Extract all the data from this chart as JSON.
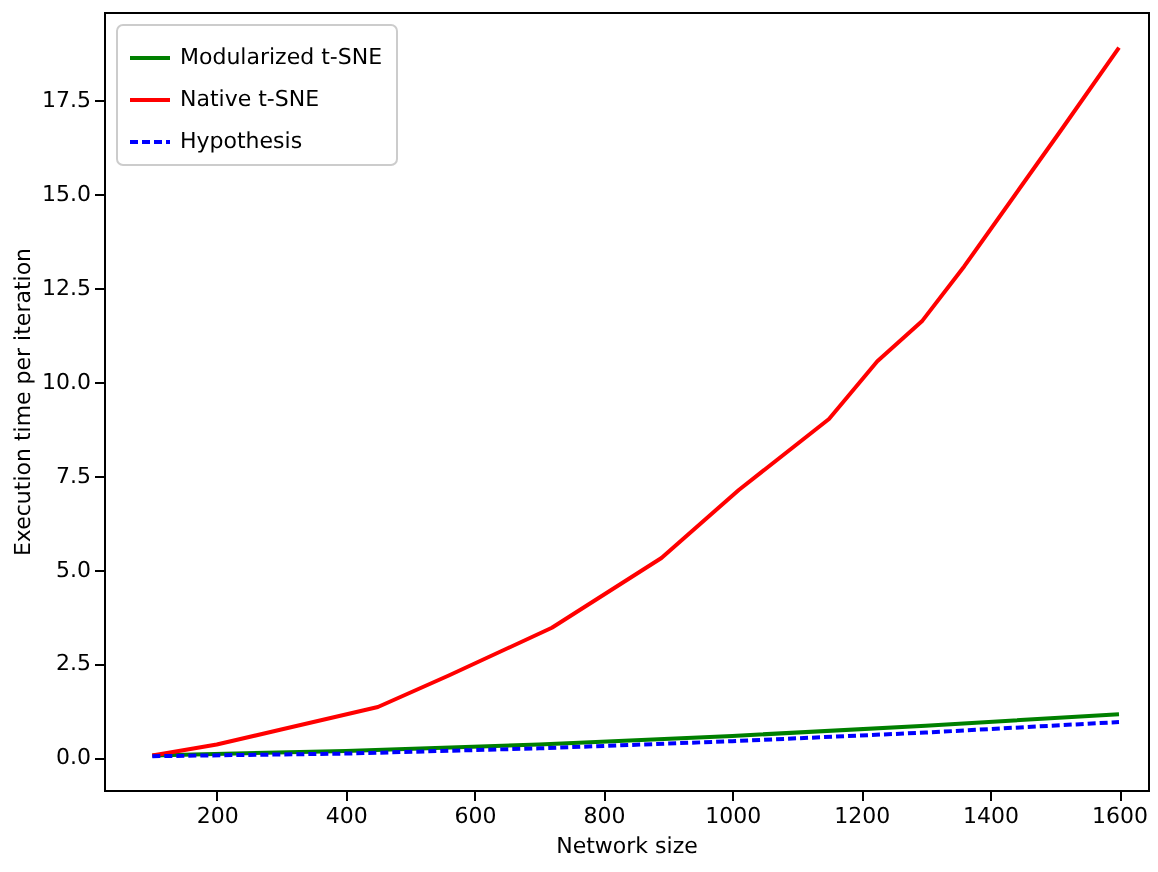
{
  "chart_data": {
    "type": "line",
    "xlabel": "Network size",
    "ylabel": "Execution time per iteration",
    "xlim": [
      25,
      1645
    ],
    "ylim": [
      -0.87,
      19.85
    ],
    "xticks": [
      200,
      400,
      600,
      800,
      1000,
      1200,
      1400,
      1600
    ],
    "yticks": [
      {
        "value": 0,
        "label": "0.0"
      },
      {
        "value": 2.5,
        "label": "2.5"
      },
      {
        "value": 5,
        "label": "5.0"
      },
      {
        "value": 7.5,
        "label": "7.5"
      },
      {
        "value": 10,
        "label": "10.0"
      },
      {
        "value": 12.5,
        "label": "12.5"
      },
      {
        "value": 15,
        "label": "15.0"
      },
      {
        "value": 17.5,
        "label": "17.5"
      }
    ],
    "grid": false,
    "legend": "top left",
    "marker": "none",
    "series": [
      {
        "name": "Modularized t-SNE",
        "color": "#008000",
        "line_style": "solid",
        "x": [
          100,
          400,
          700,
          1000,
          1300,
          1600
        ],
        "values": [
          0.05,
          0.17,
          0.34,
          0.57,
          0.84,
          1.15
        ]
      },
      {
        "name": "Native t-SNE",
        "color": "#ff0000",
        "line_style": "solid",
        "x": [
          100,
          200,
          300,
          450,
          560,
          720,
          890,
          1010,
          1150,
          1225,
          1295,
          1360,
          1510,
          1600
        ],
        "values": [
          0.05,
          0.34,
          0.74,
          1.34,
          2.18,
          3.45,
          5.31,
          7.12,
          9.01,
          10.55,
          11.63,
          13.08,
          16.7,
          18.9
        ]
      },
      {
        "name": "Hypothesis",
        "color": "#0000ff",
        "line_style": "dashed",
        "x": [
          100,
          400,
          700,
          1000,
          1300,
          1600
        ],
        "values": [
          0.03,
          0.1,
          0.24,
          0.43,
          0.66,
          0.94
        ]
      }
    ]
  }
}
